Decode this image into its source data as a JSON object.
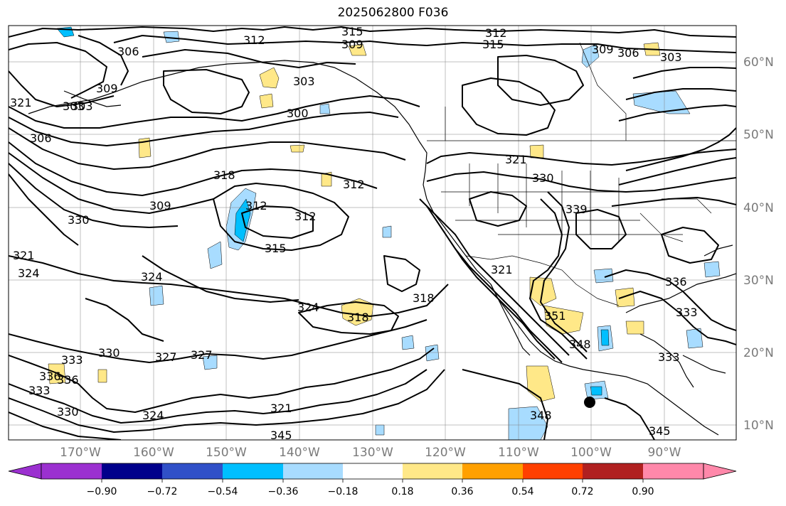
{
  "title": "2025062800 F036",
  "lon_labels": [
    "170°W",
    "160°W",
    "150°W",
    "140°W",
    "130°W",
    "120°W",
    "110°W",
    "100°W",
    "90°W"
  ],
  "lat_labels": [
    "60°N",
    "50°N",
    "40°N",
    "30°N",
    "20°N",
    "10°N"
  ],
  "colorbar": {
    "ticks": [
      "−0.90",
      "−0.72",
      "−0.54",
      "−0.36",
      "−0.18",
      "0.18",
      "0.36",
      "0.54",
      "0.72",
      "0.90"
    ],
    "colors": [
      "#9b30d0",
      "#00008b",
      "#3050c8",
      "#00bfff",
      "#a8dcff",
      "#ffffff",
      "#ffe888",
      "#ffa000",
      "#ff4000",
      "#b02020",
      "#ff88aa"
    ]
  },
  "shading_colors": {
    "neg_light": "#a8dcff",
    "neg_mid": "#00bfff",
    "pos_light": "#ffe888"
  },
  "contour_labels": [
    "312",
    "315",
    "309",
    "312",
    "315",
    "306",
    "309",
    "303",
    "309",
    "306",
    "303",
    "321",
    "303",
    "306",
    "303",
    "300",
    "318",
    "309",
    "312",
    "312",
    "321",
    "330",
    "339",
    "312",
    "315",
    "324",
    "324",
    "318",
    "318",
    "333",
    "330",
    "321",
    "324",
    "321",
    "336",
    "333",
    "336",
    "330",
    "327",
    "327",
    "333",
    "351",
    "348",
    "321",
    "324",
    "330",
    "345",
    "348",
    "345",
    "333",
    "336"
  ]
}
